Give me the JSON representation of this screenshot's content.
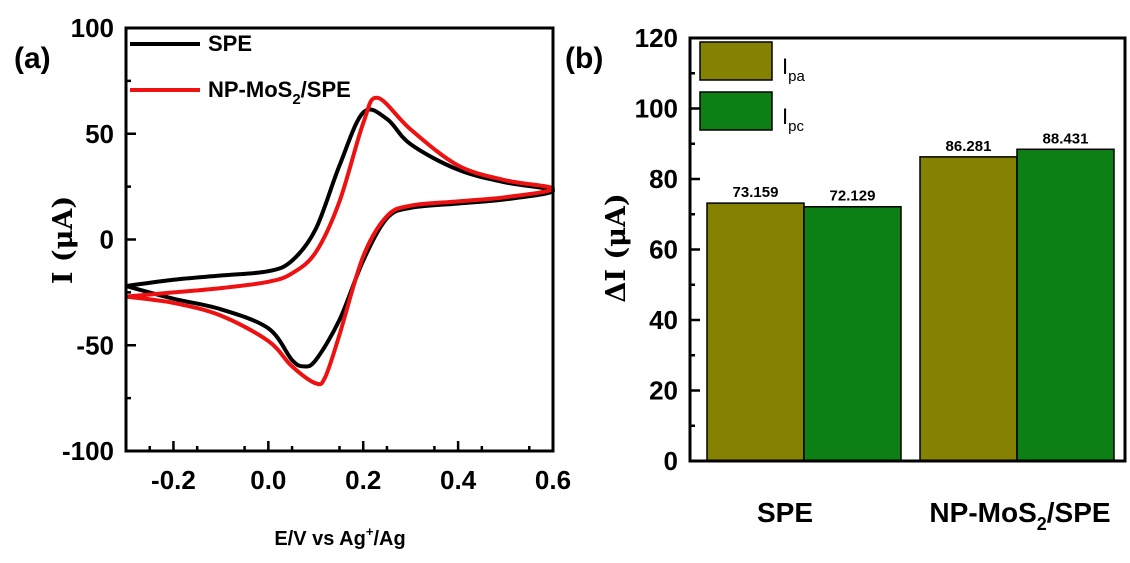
{
  "chart_data": [
    {
      "panel_label": "(a)",
      "type": "line",
      "xlabel_parts": [
        "E/V vs Ag",
        "+",
        "/Ag"
      ],
      "ylabel": "I (μA)",
      "xlim": [
        -0.3,
        0.6
      ],
      "ylim": [
        -100,
        100
      ],
      "xticks": [
        "-0.2",
        "0.0",
        "0.2",
        "0.4",
        "0.6"
      ],
      "yticks": [
        "100",
        "50",
        "0",
        "-50",
        "-100"
      ],
      "legend_position": "top-left",
      "series": [
        {
          "name": "SPE",
          "color": "#000000",
          "x": [
            -0.3,
            -0.2,
            -0.1,
            0.0,
            0.05,
            0.1,
            0.15,
            0.2,
            0.25,
            0.3,
            0.4,
            0.5,
            0.6,
            0.5,
            0.4,
            0.3,
            0.25,
            0.2,
            0.15,
            0.1,
            0.075,
            0.05,
            0.0,
            -0.1,
            -0.2,
            -0.3
          ],
          "y": [
            -22,
            -19,
            -17,
            -15,
            -10,
            5,
            35,
            60,
            57,
            45,
            33,
            27,
            23,
            19,
            17,
            15,
            10,
            -10,
            -38,
            -57,
            -60,
            -57,
            -42,
            -33,
            -28,
            -22
          ]
        },
        {
          "name": "NP-MoS₂/SPE",
          "color": "#ee1111",
          "x": [
            -0.3,
            -0.2,
            -0.1,
            0.0,
            0.05,
            0.1,
            0.15,
            0.2,
            0.23,
            0.3,
            0.4,
            0.5,
            0.6,
            0.5,
            0.4,
            0.3,
            0.25,
            0.2,
            0.15,
            0.12,
            0.1,
            0.05,
            0.0,
            -0.1,
            -0.2,
            -0.3
          ],
          "y": [
            -27,
            -25,
            -23,
            -20,
            -16,
            -6,
            18,
            55,
            67,
            52,
            35,
            28,
            24,
            20,
            18,
            16,
            11,
            -8,
            -45,
            -65,
            -68,
            -60,
            -48,
            -36,
            -30,
            -27
          ]
        }
      ]
    },
    {
      "panel_label": "(b)",
      "type": "bar",
      "ylabel": "ΔI (μA)",
      "ylim": [
        0,
        120
      ],
      "yticks": [
        "120",
        "100",
        "80",
        "60",
        "40",
        "20",
        "0"
      ],
      "categories": [
        "SPE",
        "NP-MoS₂/SPE"
      ],
      "legend_position": "top-left",
      "series": [
        {
          "name": "Ipa",
          "legend_main": "I",
          "legend_sub": "pa",
          "color": "#848200",
          "values": [
            73.159,
            86.281
          ],
          "labels": [
            "73.159",
            "86.281"
          ]
        },
        {
          "name": "Ipc",
          "legend_main": "I",
          "legend_sub": "pc",
          "color": "#0c8014",
          "values": [
            72.129,
            88.431
          ],
          "labels": [
            "72.129",
            "88.431"
          ]
        }
      ]
    }
  ],
  "text": {
    "panel_a": "(a)",
    "panel_b": "(b)",
    "legend_a_1": "SPE",
    "legend_a_2_main": "NP-MoS",
    "legend_a_2_sub": "2",
    "legend_a_2_tail": "/SPE",
    "xlabel_main": "E/V vs Ag",
    "xlabel_sup": "+",
    "xlabel_tail": "/Ag",
    "ylabel_a": "I (μA)",
    "ylabel_b": "ΔI (μA)",
    "cat_1": "SPE",
    "cat_2_main": "NP-MoS",
    "cat_2_sub": "2",
    "cat_2_tail": "/SPE",
    "leg_b_1_main": "I",
    "leg_b_1_sub": "pa",
    "leg_b_2_main": "I",
    "leg_b_2_sub": "pc"
  }
}
